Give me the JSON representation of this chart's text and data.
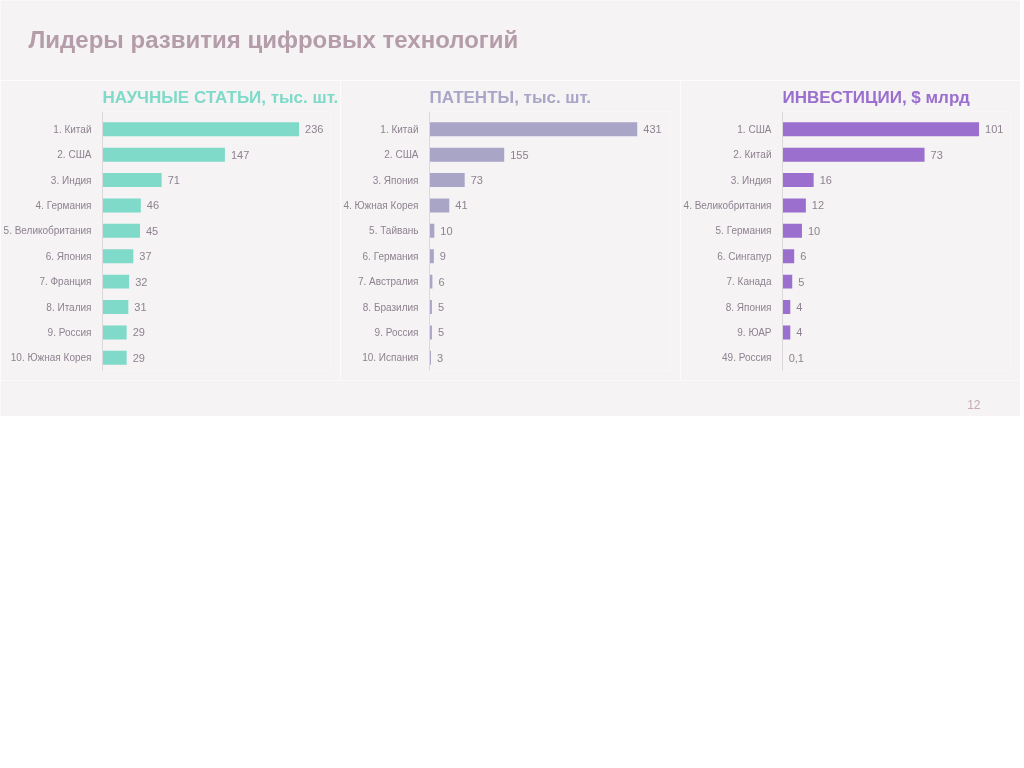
{
  "chart_data": [
    {
      "type": "other",
      "title": "Лидеры развития цифровых технологий",
      "annotations": [
        "12"
      ]
    },
    {
      "type": "bar",
      "orientation": "horizontal",
      "title": "НАУЧНЫЕ СТАТЬИ, тыс. шт.",
      "categories": [
        "1. Китай",
        "2. США",
        "3. Индия",
        "4. Германия",
        "5. Великобритания",
        "6. Япония",
        "7. Франция",
        "8. Италия",
        "9. Россия",
        "10. Южная Корея"
      ],
      "values": [
        236,
        147,
        71,
        46,
        45,
        37,
        32,
        31,
        29,
        29
      ],
      "color": "#7fdac9",
      "data_labels": true
    },
    {
      "type": "bar",
      "orientation": "horizontal",
      "title": "ПАТЕНТЫ, тыс. шт.",
      "categories": [
        "1. Китай",
        "2. США",
        "3. Япония",
        "4. Южная Корея",
        "5. Тайвань",
        "6. Германия",
        "7. Австралия",
        "8. Бразилия",
        "9. Россия",
        "10. Испания"
      ],
      "values": [
        431,
        155,
        73,
        41,
        10,
        9,
        6,
        5,
        5,
        3
      ],
      "color": "#a9a5c6",
      "data_labels": true
    },
    {
      "type": "bar",
      "orientation": "horizontal",
      "title": "ИНВЕСТИЦИИ, $ млрд",
      "categories": [
        "1. США",
        "2. Китай",
        "3. Индия",
        "4. Великобритания",
        "5. Германия",
        "6. Сингапур",
        "7. Канада",
        "8. Япония",
        "9. ЮАР",
        "49. Россия"
      ],
      "values": [
        101,
        73,
        16,
        12,
        10,
        6,
        5,
        4,
        4,
        0.1
      ],
      "color": "#9a6fce",
      "value_labels": [
        "101",
        "73",
        "16",
        "12",
        "10",
        "6",
        "5",
        "4",
        "4",
        "0,1"
      ]
    }
  ]
}
